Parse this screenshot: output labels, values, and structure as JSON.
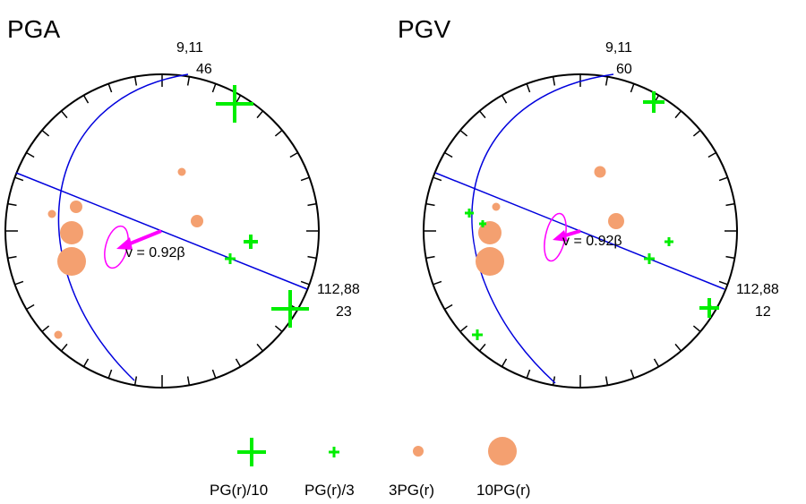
{
  "colors": {
    "plus_marker": "#00ee00",
    "dot_marker": "#f4a070",
    "nodal_plane": "#0000dd",
    "rupture_arrow": "#ff00ff",
    "stereonet_outline": "#000000"
  },
  "panels": [
    {
      "title": "PGA",
      "top_label": [
        "9,11",
        "46"
      ],
      "right_label": [
        "112,88",
        "23"
      ],
      "velocity_label": "v = 0.92β"
    },
    {
      "title": "PGV",
      "top_label": [
        "9,11",
        "60"
      ],
      "right_label": [
        "112,88",
        "12"
      ],
      "velocity_label": "v = 0.92β"
    }
  ],
  "legend": [
    {
      "label": "PG(r)/10",
      "symbol": "plus-large"
    },
    {
      "label": "PG(r)/3",
      "symbol": "plus-small"
    },
    {
      "label": "3PG(r)",
      "symbol": "dot-small"
    },
    {
      "label": "10PG(r)",
      "symbol": "dot-large"
    }
  ]
}
